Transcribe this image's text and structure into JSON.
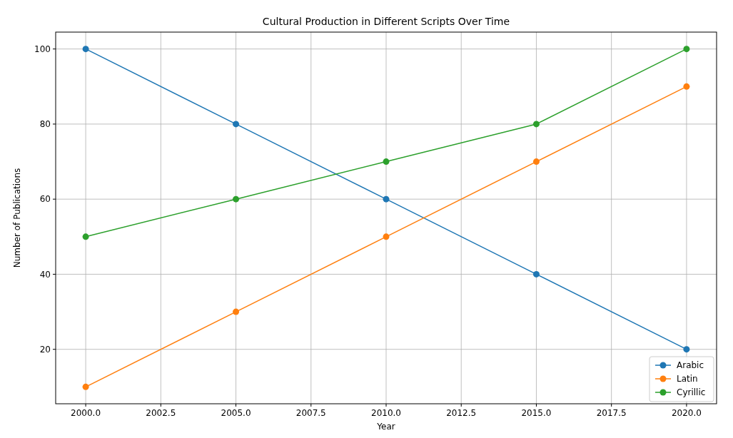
{
  "chart_data": {
    "type": "line",
    "title": "Cultural Production in Different Scripts Over Time",
    "xlabel": "Year",
    "ylabel": "Number of Publications",
    "x": [
      2000,
      2005,
      2010,
      2015,
      2020
    ],
    "series": [
      {
        "name": "Arabic",
        "color": "#1f77b4",
        "values": [
          100,
          80,
          60,
          40,
          20
        ]
      },
      {
        "name": "Latin",
        "color": "#ff7f0e",
        "values": [
          10,
          30,
          50,
          70,
          90
        ]
      },
      {
        "name": "Cyrillic",
        "color": "#2ca02c",
        "values": [
          50,
          60,
          70,
          80,
          100
        ]
      }
    ],
    "xlim": [
      1999,
      2021
    ],
    "xticks": [
      {
        "value": 2000,
        "label": "2000.0"
      },
      {
        "value": 2002.5,
        "label": "2002.5"
      },
      {
        "value": 2005,
        "label": "2005.0"
      },
      {
        "value": 2007.5,
        "label": "2007.5"
      },
      {
        "value": 2010,
        "label": "2010.0"
      },
      {
        "value": 2012.5,
        "label": "2012.5"
      },
      {
        "value": 2015,
        "label": "2015.0"
      },
      {
        "value": 2017.5,
        "label": "2017.5"
      },
      {
        "value": 2020,
        "label": "2020.0"
      }
    ],
    "ylim": [
      5.5,
      104.5
    ],
    "yticks": [
      20,
      40,
      60,
      80,
      100
    ],
    "grid": true,
    "legend": "bottom right",
    "marker": "circle",
    "line_style": "solid"
  }
}
